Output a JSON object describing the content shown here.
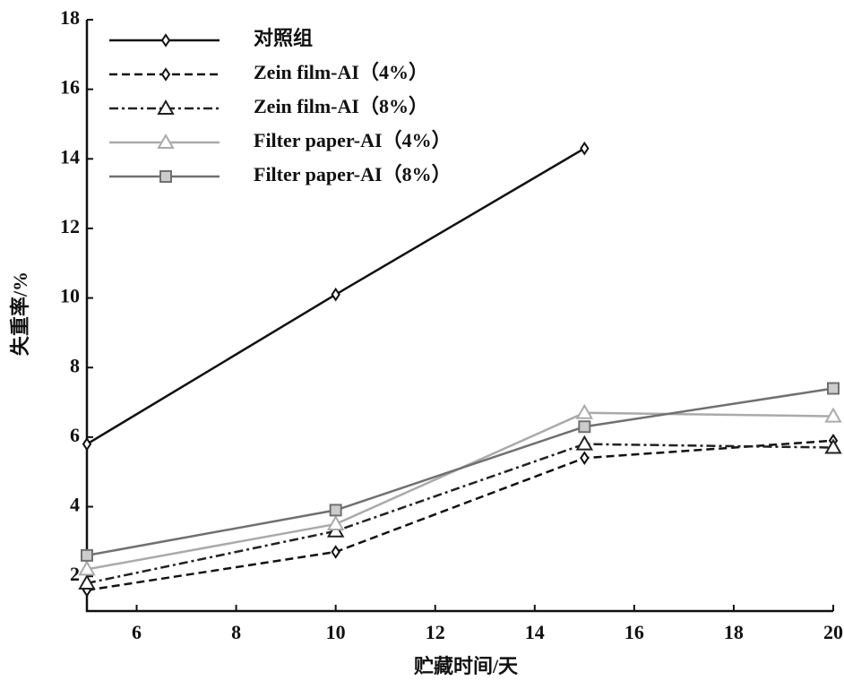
{
  "chart_data": {
    "type": "line",
    "x_label": "贮藏时间/天",
    "y_label": "失重率/%",
    "xlim": [
      5,
      20
    ],
    "xticks": [
      6,
      8,
      10,
      12,
      14,
      16,
      18,
      20
    ],
    "ylim": [
      1,
      18
    ],
    "yticks": [
      2,
      4,
      6,
      8,
      10,
      12,
      14,
      16,
      18
    ],
    "series": [
      {
        "name": "对照组",
        "color": "#111111",
        "dash": "none",
        "marker": "diamond",
        "x": [
          5,
          10,
          15
        ],
        "values": [
          5.8,
          10.1,
          14.3
        ]
      },
      {
        "name": "Zein film-AI（4%）",
        "color": "#111111",
        "dash": "9 5",
        "marker": "diamond",
        "x": [
          5,
          10,
          15,
          20
        ],
        "values": [
          1.6,
          2.7,
          5.4,
          5.9
        ]
      },
      {
        "name": "Zein film-AI（8%）",
        "color": "#222222",
        "dash": "10 4 3 4",
        "marker": "triangle",
        "x": [
          5,
          10,
          15,
          20
        ],
        "values": [
          1.8,
          3.3,
          5.8,
          5.7
        ]
      },
      {
        "name": "Filter paper-AI（4%）",
        "color": "#aaaaaa",
        "dash": "none",
        "marker": "triangle",
        "x": [
          5,
          10,
          15,
          20
        ],
        "values": [
          2.2,
          3.5,
          6.7,
          6.6
        ]
      },
      {
        "name": "Filter paper-AI（8%）",
        "color": "#707070",
        "dash": "none",
        "marker": "square",
        "x": [
          5,
          10,
          15,
          20
        ],
        "values": [
          2.6,
          3.9,
          6.3,
          7.4
        ]
      }
    ]
  }
}
